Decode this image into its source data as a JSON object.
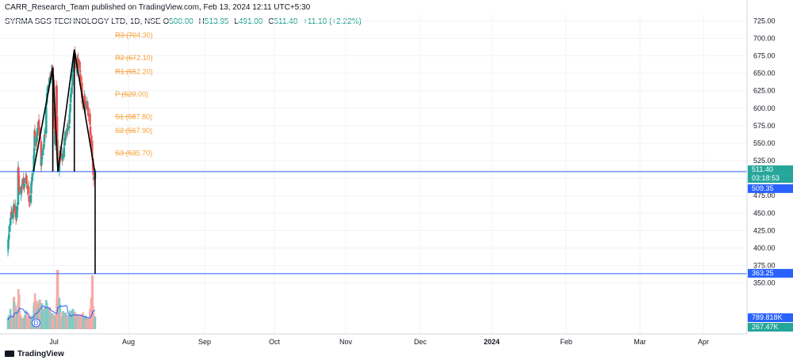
{
  "header": {
    "published": "CARR_Research_Team published on TradingView.com, Feb 13, 2024 12:11 UTC+5:30",
    "symbol": "SYRMA SGS TECHNOLOGY LTD, 1D, NSE",
    "o_label": "O",
    "o_value": "500.00",
    "h_label": "H",
    "h_value": "513.95",
    "l_label": "L",
    "l_value": "491.00",
    "c_label": "C",
    "c_value": "511.40",
    "change": "+11.10 (+2.22%)"
  },
  "brand": "TradingView",
  "colors": {
    "up": "#26a69a",
    "down": "#ef5350",
    "vol_up": "#80cbc4",
    "vol_down": "#f7a9a7",
    "pivot": "#f7a03a",
    "hline": "#2962ff",
    "pattern": "#000000",
    "vol_ma": "#2962ff",
    "grid": "#f0f3fa",
    "axis_text": "#131722"
  },
  "chart_data": {
    "type": "candlestick",
    "y_axis": {
      "ticks": [
        350,
        375,
        400,
        425,
        450,
        475,
        500,
        525,
        550,
        575,
        600,
        625,
        650,
        675,
        700,
        725
      ],
      "tick_labels": [
        "350.00",
        "375.00",
        "400.00",
        "425.00",
        "450.00",
        "475.00",
        "500.00",
        "525.00",
        "550.00",
        "575.00",
        "600.00",
        "625.00",
        "650.00",
        "675.00",
        "700.00",
        "725.00"
      ],
      "range": [
        345,
        730
      ]
    },
    "x_axis": {
      "labels": [
        "Jul",
        "Aug",
        "Sep",
        "Oct",
        "Nov",
        "Dec",
        "2024",
        "Feb",
        "Mar",
        "Apr"
      ],
      "bold_index": 6
    },
    "price_path": [
      [
        "2023-06-19",
        400
      ],
      [
        "2023-06-22",
        425
      ],
      [
        "2023-06-26",
        445
      ],
      [
        "2023-07-03",
        450
      ],
      [
        "2023-07-06",
        462
      ],
      [
        "2023-07-10",
        445
      ],
      [
        "2023-07-13",
        448
      ],
      [
        "2023-07-17",
        510
      ],
      [
        "2023-07-20",
        482
      ],
      [
        "2023-07-24",
        475
      ],
      [
        "2023-07-27",
        490
      ],
      [
        "2023-07-31",
        498
      ],
      [
        "2023-08-03",
        485
      ],
      [
        "2023-08-07",
        505
      ],
      [
        "2023-08-10",
        488
      ],
      [
        "2023-08-14",
        485
      ],
      [
        "2023-08-17",
        465
      ],
      [
        "2023-08-21",
        480
      ],
      [
        "2023-08-24",
        502
      ],
      [
        "2023-08-28",
        510
      ],
      [
        "2023-08-31",
        565
      ],
      [
        "2023-09-04",
        552
      ],
      [
        "2023-09-07",
        562
      ],
      [
        "2023-09-11",
        580
      ],
      [
        "2023-09-14",
        562
      ],
      [
        "2023-09-18",
        520
      ],
      [
        "2023-09-21",
        535
      ],
      [
        "2023-09-25",
        550
      ],
      [
        "2023-09-28",
        560
      ],
      [
        "2023-10-02",
        600
      ],
      [
        "2023-10-05",
        625
      ],
      [
        "2023-10-09",
        635
      ],
      [
        "2023-10-12",
        645
      ],
      [
        "2023-10-16",
        648
      ],
      [
        "2023-10-19",
        655
      ],
      [
        "2023-10-23",
        600
      ],
      [
        "2023-10-26",
        550
      ],
      [
        "2023-10-30",
        630
      ],
      [
        "2023-11-02",
        520
      ],
      [
        "2023-11-06",
        515
      ],
      [
        "2023-11-09",
        535
      ],
      [
        "2023-11-13",
        532
      ],
      [
        "2023-11-16",
        530
      ],
      [
        "2023-11-20",
        548
      ],
      [
        "2023-11-23",
        560
      ],
      [
        "2023-11-27",
        565
      ],
      [
        "2023-11-30",
        572
      ],
      [
        "2023-12-04",
        580
      ],
      [
        "2023-12-07",
        610
      ],
      [
        "2023-12-11",
        630
      ],
      [
        "2023-12-14",
        655
      ],
      [
        "2023-12-18",
        680
      ],
      [
        "2023-12-21",
        670
      ],
      [
        "2023-12-25",
        655
      ],
      [
        "2023-12-28",
        668
      ],
      [
        "2024-01-01",
        662
      ],
      [
        "2024-01-04",
        640
      ],
      [
        "2024-01-08",
        615
      ],
      [
        "2024-01-11",
        608
      ],
      [
        "2024-01-15",
        612
      ],
      [
        "2024-01-18",
        600
      ],
      [
        "2024-01-22",
        605
      ],
      [
        "2024-01-25",
        595
      ],
      [
        "2024-01-29",
        590
      ],
      [
        "2024-02-01",
        555
      ],
      [
        "2024-02-05",
        535
      ],
      [
        "2024-02-08",
        500
      ],
      [
        "2024-02-12",
        500
      ],
      [
        "2024-02-13",
        511.4
      ]
    ],
    "vol_path": [
      [
        "2023-06-19",
        0.3
      ],
      [
        "2023-06-26",
        0.4
      ],
      [
        "2023-07-03",
        0.2
      ],
      [
        "2023-07-06",
        0.9
      ],
      [
        "2023-07-13",
        0.3
      ],
      [
        "2023-07-17",
        1.0
      ],
      [
        "2023-07-24",
        0.3
      ],
      [
        "2023-07-31",
        0.2
      ],
      [
        "2023-08-07",
        0.4
      ],
      [
        "2023-08-14",
        0.3
      ],
      [
        "2023-08-21",
        0.25
      ],
      [
        "2023-08-28",
        0.3
      ],
      [
        "2023-08-31",
        0.9
      ],
      [
        "2023-09-07",
        0.5
      ],
      [
        "2023-09-11",
        0.55
      ],
      [
        "2023-09-18",
        0.7
      ],
      [
        "2023-09-25",
        0.4
      ],
      [
        "2023-10-02",
        0.6
      ],
      [
        "2023-10-09",
        0.5
      ],
      [
        "2023-10-16",
        0.35
      ],
      [
        "2023-10-23",
        0.3
      ],
      [
        "2023-10-30",
        0.4
      ],
      [
        "2023-11-02",
        1.0
      ],
      [
        "2023-11-06",
        0.7
      ],
      [
        "2023-11-13",
        0.3
      ],
      [
        "2023-11-20",
        0.4
      ],
      [
        "2023-11-27",
        0.3
      ],
      [
        "2023-12-04",
        0.35
      ],
      [
        "2023-12-11",
        0.4
      ],
      [
        "2023-12-18",
        0.45
      ],
      [
        "2023-12-25",
        0.3
      ],
      [
        "2024-01-01",
        0.3
      ],
      [
        "2024-01-08",
        0.35
      ],
      [
        "2024-01-15",
        0.3
      ],
      [
        "2024-01-22",
        0.25
      ],
      [
        "2024-01-29",
        0.3
      ],
      [
        "2024-02-05",
        1.0
      ],
      [
        "2024-02-08",
        0.5
      ],
      [
        "2024-02-13",
        0.3
      ]
    ],
    "candle_days": {
      "start": "2023-06-19",
      "end": "2024-02-13",
      "jagged": [
        3,
        10,
        5,
        0,
        8,
        4,
        2,
        12,
        7,
        1,
        9,
        6,
        11
      ],
      "peaks": {
        "2023-11-02": 1.4,
        "2024-02-05": 1.27,
        "2023-07-06": 0.63,
        "2023-07-17": 0.63,
        "2023-08-31": 0.63,
        "2023-09-11": 0.6
      }
    },
    "pivots": [
      {
        "label": "R3 (704.30)",
        "value": 704.3
      },
      {
        "label": "R2 (672.10)",
        "value": 672.1
      },
      {
        "label": "R1 (652.20)",
        "value": 652.2
      },
      {
        "label": "P (620.00)",
        "value": 620.0
      },
      {
        "label": "S1 (587.80)",
        "value": 587.8
      },
      {
        "label": "S2 (567.90)",
        "value": 567.9
      },
      {
        "label": "S3 (535.70)",
        "value": 535.7
      }
    ],
    "pivot_range": [
      "2023-12-21",
      "2024-03-08"
    ],
    "hlines": [
      {
        "value": 509.35,
        "label": "509.35"
      },
      {
        "value": 363.25,
        "label": "363.25"
      }
    ],
    "price_tag": {
      "value": 511.4,
      "label": "511.40",
      "countdown": "03:18:53"
    },
    "volume": {
      "ma_label": "789.818K",
      "last_label": "267.47K"
    },
    "pattern_lines": [
      {
        "points": [
          [
            "2023-08-28",
            510
          ],
          [
            "2023-10-20",
            658
          ]
        ]
      },
      {
        "points": [
          [
            "2023-10-20",
            658
          ],
          [
            "2023-11-03",
            509.35
          ]
        ]
      },
      {
        "points": [
          [
            "2023-11-03",
            509.35
          ],
          [
            "2023-12-18",
            684
          ]
        ]
      },
      {
        "points": [
          [
            "2023-12-18",
            684
          ],
          [
            "2024-02-12",
            509.35
          ]
        ]
      }
    ],
    "pattern_verticals": [
      {
        "date": "2023-10-20",
        "from": 658,
        "to": 509.35
      },
      {
        "date": "2023-12-18",
        "from": 684,
        "to": 509.35
      },
      {
        "date": "2024-02-13",
        "from": 509.35,
        "to": 363.25
      }
    ],
    "marker": {
      "date": "2023-09-04",
      "label": "D"
    }
  }
}
